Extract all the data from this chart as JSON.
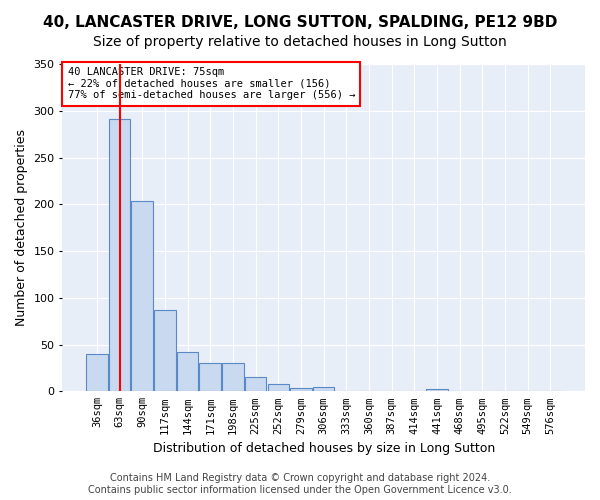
{
  "title": "40, LANCASTER DRIVE, LONG SUTTON, SPALDING, PE12 9BD",
  "subtitle": "Size of property relative to detached houses in Long Sutton",
  "xlabel": "Distribution of detached houses by size in Long Sutton",
  "ylabel": "Number of detached properties",
  "bar_values": [
    40,
    291,
    204,
    87,
    42,
    30,
    30,
    15,
    8,
    4,
    5,
    0,
    0,
    0,
    0,
    3,
    0,
    0,
    0,
    0,
    0
  ],
  "bar_labels": [
    "36sqm",
    "63sqm",
    "90sqm",
    "117sqm",
    "144sqm",
    "171sqm",
    "198sqm",
    "225sqm",
    "252sqm",
    "279sqm",
    "306sqm",
    "333sqm",
    "360sqm",
    "387sqm",
    "414sqm",
    "441sqm",
    "468sqm",
    "495sqm",
    "522sqm",
    "549sqm",
    "576sqm"
  ],
  "bar_color": "#c9d9f0",
  "bar_edge_color": "#5a8ac6",
  "red_line_x": 1.0,
  "annotation_text": "40 LANCASTER DRIVE: 75sqm\n← 22% of detached houses are smaller (156)\n77% of semi-detached houses are larger (556) →",
  "annotation_box_color": "white",
  "annotation_box_edge_color": "red",
  "footer_text": "Contains HM Land Registry data © Crown copyright and database right 2024.\nContains public sector information licensed under the Open Government Licence v3.0.",
  "ylim": [
    0,
    350
  ],
  "yticks": [
    0,
    50,
    100,
    150,
    200,
    250,
    300,
    350
  ],
  "background_color": "#e8eef8",
  "grid_color": "white",
  "title_fontsize": 11,
  "subtitle_fontsize": 10,
  "axis_label_fontsize": 9,
  "tick_fontsize": 7.5,
  "footer_fontsize": 7,
  "annotation_fontsize": 7.5
}
